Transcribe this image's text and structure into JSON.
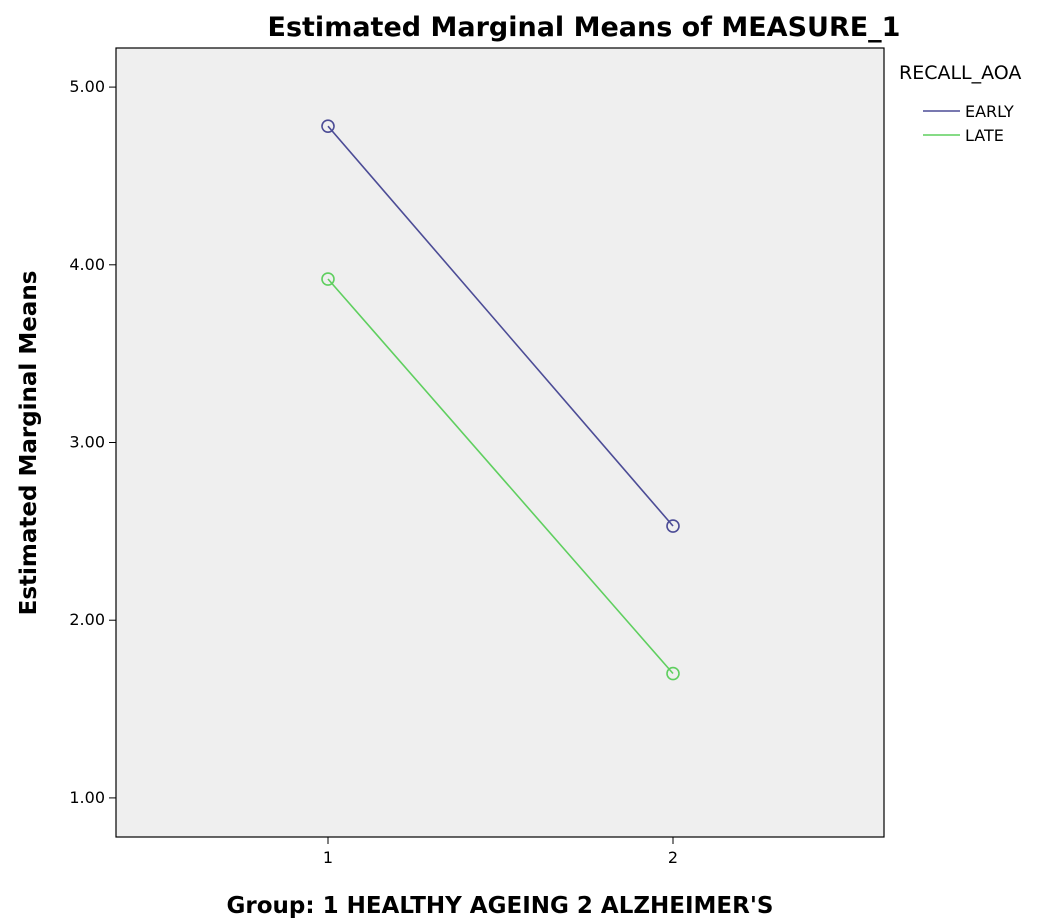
{
  "chart_data": {
    "type": "line",
    "title": "Estimated Marginal Means of MEASURE_1",
    "xlabel": "Group: 1 HEALTHY AGEING 2 ALZHEIMER'S",
    "ylabel": "Estimated Marginal Means",
    "categories": [
      "1",
      "2"
    ],
    "y_ticks": [
      "1.00",
      "2.00",
      "3.00",
      "4.00",
      "5.00"
    ],
    "ylim": [
      0.78,
      5.22
    ],
    "grid": false,
    "legend": {
      "title": "RECALL_AOA",
      "placement": "right"
    },
    "series": [
      {
        "name": "EARLY",
        "values": [
          4.78,
          2.53
        ],
        "color": "#4c4c96"
      },
      {
        "name": "LATE",
        "values": [
          3.92,
          1.7
        ],
        "color": "#5fcf5f"
      }
    ],
    "plot_background": "#efefef"
  }
}
